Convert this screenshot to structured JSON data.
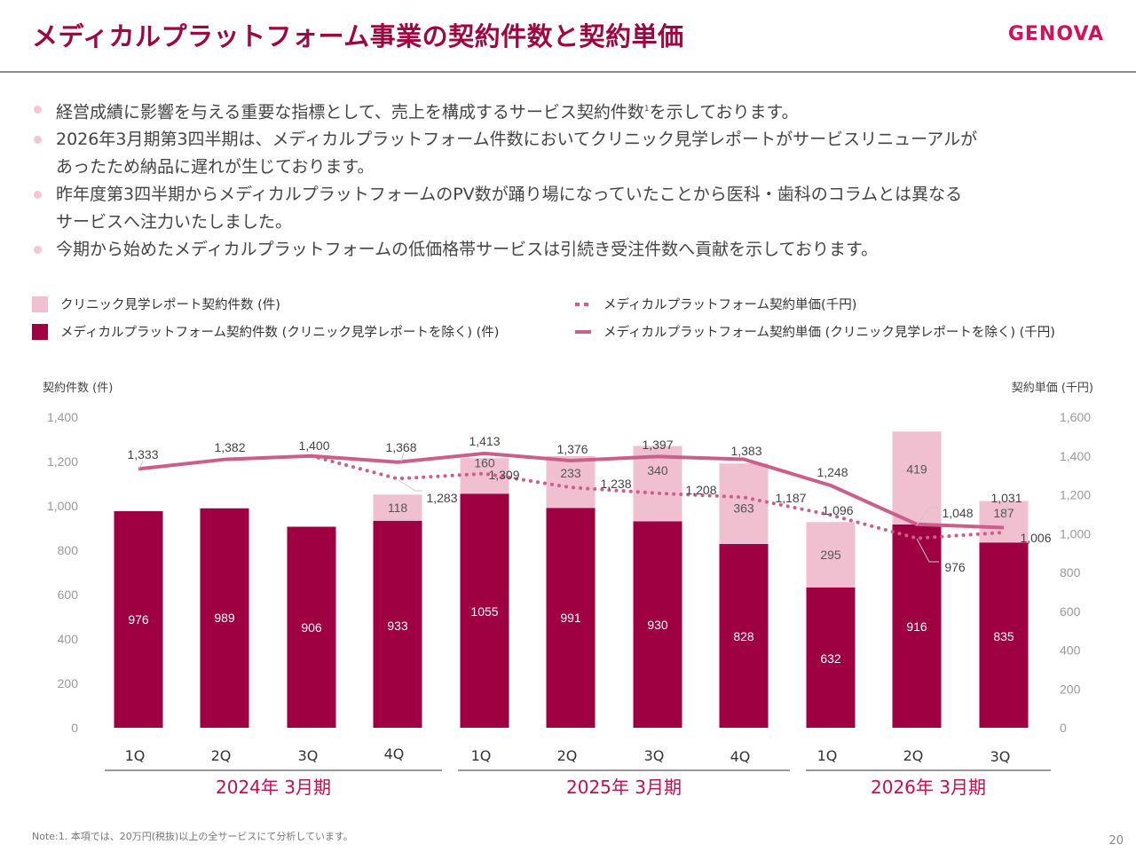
{
  "header": {
    "title": "メディカルプラットフォーム事業の契約件数と契約単価",
    "logo": "GENOVA"
  },
  "bullets": [
    {
      "lines": [
        "経営成績に影響を与える重要な指標として、売上を構成するサービス契約件数",
        "を示しております。"
      ],
      "sup": "1"
    },
    {
      "lines": [
        "2026年3月期第3四半期は、メディカルプラットフォーム件数においてクリニック見学レポートがサービスリニューアルが",
        "あったため納品に遅れが生じております。"
      ]
    },
    {
      "lines": [
        "昨年度第3四半期からメディカルプラットフォームのPV数が踊り場になっていたことから医科・歯科のコラムとは異なる",
        "サービスへ注力いたしました。"
      ]
    },
    {
      "lines": [
        "今期から始めたメディカルプラットフォームの低価格帯サービスは引続き受注件数へ貢献を示しております。"
      ]
    }
  ],
  "legend": {
    "light_bar": "クリニック見学レポート契約件数 (件)",
    "dark_bar": "メディカルプラットフォーム契約件数 (クリニック見学レポートを除く) (件)",
    "dotted_line": "メディカルプラットフォーム契約単価(千円)",
    "solid_line": "メディカルプラットフォーム契約単価 (クリニック見学レポートを除く) (千円)"
  },
  "colors": {
    "dark_bar": "#9e0042",
    "light_bar": "#f0c0d0",
    "line": "#cc5f8a",
    "title": "#9e0842",
    "fiscal_label": "#c0104f",
    "tick": "#999999"
  },
  "chart_data": {
    "type": "bar",
    "subtype": "stacked bar + line (dual axis)",
    "title": "メディカルプラットフォーム事業の契約件数と契約単価",
    "ylabel_left": "契約件数 (件)",
    "ylabel_right": "契約単価 (千円)",
    "ylim_left": [
      0,
      1400
    ],
    "ylim_right": [
      0,
      1600
    ],
    "yticks_left": [
      "0",
      "200",
      "400",
      "600",
      "800",
      "1,000",
      "1,200",
      "1,400"
    ],
    "yticks_right": [
      "0",
      "200",
      "400",
      "600",
      "800",
      "1,000",
      "1,200",
      "1,400",
      "1,600"
    ],
    "grid": false,
    "legend_position": "top",
    "categories": [
      "1Q",
      "2Q",
      "3Q",
      "4Q",
      "1Q",
      "2Q",
      "3Q",
      "4Q",
      "1Q",
      "2Q",
      "3Q"
    ],
    "fiscal_groups": [
      {
        "label": "2024年 3月期",
        "count": 4
      },
      {
        "label": "2025年 3月期",
        "count": 4
      },
      {
        "label": "2026年 3月期",
        "count": 3
      }
    ],
    "series": [
      {
        "name": "メディカルプラットフォーム契約件数 (クリニック見学レポートを除く) (件)",
        "kind": "bar",
        "axis": "left",
        "values": [
          976,
          989,
          906,
          933,
          1055,
          991,
          930,
          828,
          632,
          916,
          835
        ],
        "labels": [
          "976",
          "989",
          "906",
          "933",
          "1055",
          "991",
          "930",
          "828",
          "632",
          "916",
          "835"
        ]
      },
      {
        "name": "クリニック見学レポート契約件数 (件)",
        "kind": "bar",
        "axis": "left",
        "values": [
          null,
          null,
          null,
          118,
          160,
          233,
          340,
          363,
          295,
          419,
          187
        ],
        "labels": [
          "",
          "",
          "",
          "118",
          "160",
          "233",
          "340",
          "363",
          "295",
          "419",
          "187"
        ]
      },
      {
        "name": "メディカルプラットフォーム契約単価 (クリニック見学レポートを除く) (千円)",
        "kind": "line-solid",
        "axis": "right",
        "values": [
          1333,
          1382,
          1400,
          1368,
          1413,
          1376,
          1397,
          1383,
          1248,
          1048,
          1031
        ],
        "labels": [
          "1,333",
          "1,382",
          "1,400",
          "1,368",
          "1,413",
          "1,376",
          "1,397",
          "1,383",
          "1,248",
          "1,048",
          "1,031"
        ]
      },
      {
        "name": "メディカルプラットフォーム契約単価(千円)",
        "kind": "line-dotted",
        "axis": "right",
        "values": [
          null,
          null,
          1400,
          1283,
          1309,
          1238,
          1208,
          1187,
          1096,
          976,
          1006
        ],
        "labels": [
          "",
          "",
          "",
          "1,283",
          "1,309",
          "1,238",
          "1,208",
          "1,187",
          "1,096",
          "976",
          "1,006"
        ]
      }
    ]
  },
  "footnote": "Note:1. 本項では、20万円(税抜)以上の全サービスにて分析しています。",
  "page_number": "20"
}
